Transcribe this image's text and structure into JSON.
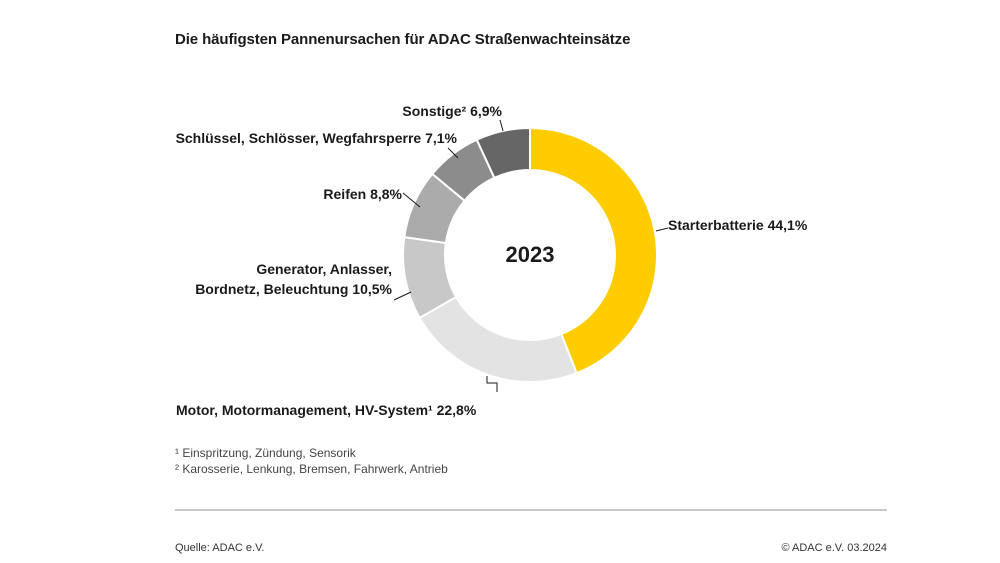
{
  "title": "Die häufigsten Pannenursachen für ADAC Straßenwachteinsätze",
  "chart_data": {
    "type": "pie",
    "variant": "donut",
    "center_label": "2023",
    "legend": "none (direct labels)",
    "slices": [
      {
        "label": "Starterbatterie",
        "value": 44.1,
        "value_label": "44,1%",
        "color": "#FFCC00"
      },
      {
        "label": "Motor, Motormanagement, HV-System¹",
        "value": 22.8,
        "value_label": "22,8%",
        "color": "#E3E3E3"
      },
      {
        "label": "Generator, Anlasser, Bordnetz, Beleuchtung",
        "value": 10.5,
        "value_label": "10,5%",
        "color": "#C8C8C8"
      },
      {
        "label": "Reifen",
        "value": 8.8,
        "value_label": "8,8%",
        "color": "#ABABAB"
      },
      {
        "label": "Schlüssel, Schlösser, Wegfahrsperre",
        "value": 7.1,
        "value_label": "7,1%",
        "color": "#8C8C8C"
      },
      {
        "label": "Sonstige²",
        "value": 6.9,
        "value_label": "6,9%",
        "color": "#666666"
      }
    ]
  },
  "labels": {
    "starter": "Starterbatterie 44,1%",
    "motor": "Motor, Motormanagement, HV-System¹ 22,8%",
    "generator_line1": "Generator, Anlasser,",
    "generator_line2": "Bordnetz, Beleuchtung 10,5%",
    "reifen": "Reifen 8,8%",
    "schluessel": "Schlüssel, Schlösser, Wegfahrsperre 7,1%",
    "sonstige": "Sonstige² 6,9%"
  },
  "footnotes": {
    "note1": "¹ Einspritzung, Zündung, Sensorik",
    "note2": "² Karosserie, Lenkung, Bremsen, Fahrwerk, Antrieb"
  },
  "footer": {
    "source": "Quelle: ADAC e.V.",
    "copyright": "© ADAC e.V. 03.2024"
  }
}
